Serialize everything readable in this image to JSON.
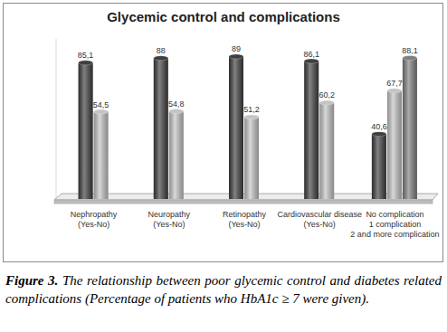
{
  "chart_data": {
    "type": "bar",
    "title": "Glycemic control and complications",
    "categories": [
      "Nephropathy\n(Yes-No)",
      "Neuropathy\n(Yes-No)",
      "Retinopathy\n(Yes-No)",
      "Cardiovascular disease\n(Yes-No)",
      "No complication\n1 complication\n2 and more complication"
    ],
    "series": [
      {
        "color": "#3f3f3f",
        "values": [
          85.1,
          88,
          89,
          86.1,
          40.6
        ],
        "value_labels": [
          "85,1",
          "88",
          "89",
          "86,1",
          "40,6"
        ]
      },
      {
        "color": "#c4c4c4",
        "values": [
          54.5,
          54.8,
          51.2,
          60.2,
          67.7
        ],
        "value_labels": [
          "54,5",
          "54,8",
          "51,2",
          "60,2",
          "67,7"
        ]
      },
      {
        "color": "#7f7f7f",
        "values": [
          null,
          null,
          null,
          null,
          88.1
        ],
        "value_labels": [
          null,
          null,
          null,
          null,
          "88,1"
        ]
      }
    ],
    "ylim": [
      0,
      100
    ],
    "grid": false,
    "data_labels": true,
    "tick_labels": "x"
  },
  "caption": {
    "label": "Figure 3.",
    "text": "The relationship between poor glycemic control and diabetes related complications (Percentage of patients who HbA1c ≥ 7 were given)."
  }
}
